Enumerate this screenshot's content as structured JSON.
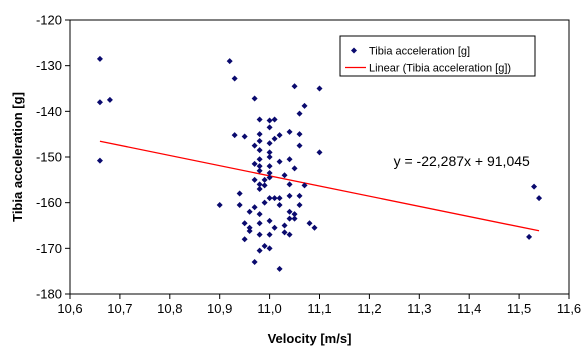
{
  "chart_data": {
    "type": "scatter",
    "title": "",
    "xlabel": "Velocity [m/s]",
    "ylabel": "Tibia acceleration [g]",
    "xlim": [
      10.6,
      11.6
    ],
    "ylim": [
      -180,
      -120
    ],
    "x_ticks": [
      "10,6",
      "10,7",
      "10,8",
      "10,9",
      "11,0",
      "11,1",
      "11,2",
      "11,3",
      "11,4",
      "11,5",
      "11,6"
    ],
    "y_ticks": [
      "-120",
      "-130",
      "-140",
      "-150",
      "-160",
      "-170",
      "-180"
    ],
    "grid": false,
    "legend_position": "top-right",
    "series": [
      {
        "name": "Tibia acceleration [g]",
        "kind": "points",
        "color": "#0a0a6e",
        "points": [
          [
            10.66,
            -128.5
          ],
          [
            10.66,
            -138.0
          ],
          [
            10.66,
            -150.8
          ],
          [
            10.68,
            -137.5
          ],
          [
            10.9,
            -160.5
          ],
          [
            10.92,
            -129.0
          ],
          [
            10.93,
            -132.8
          ],
          [
            10.93,
            -145.2
          ],
          [
            10.94,
            -158.0
          ],
          [
            10.94,
            -160.5
          ],
          [
            10.95,
            -145.5
          ],
          [
            10.95,
            -164.5
          ],
          [
            10.95,
            -168.0
          ],
          [
            10.96,
            -162.0
          ],
          [
            10.96,
            -165.5
          ],
          [
            10.96,
            -166.2
          ],
          [
            10.97,
            -137.2
          ],
          [
            10.97,
            -147.5
          ],
          [
            10.97,
            -151.5
          ],
          [
            10.97,
            -155.0
          ],
          [
            10.97,
            -161.0
          ],
          [
            10.97,
            -173.0
          ],
          [
            10.98,
            -141.8
          ],
          [
            10.98,
            -145.0
          ],
          [
            10.98,
            -146.5
          ],
          [
            10.98,
            -148.5
          ],
          [
            10.98,
            -150.5
          ],
          [
            10.98,
            -152.0
          ],
          [
            10.98,
            -153.0
          ],
          [
            10.98,
            -156.0
          ],
          [
            10.98,
            -157.0
          ],
          [
            10.98,
            -162.5
          ],
          [
            10.98,
            -164.5
          ],
          [
            10.98,
            -167.0
          ],
          [
            10.98,
            -170.5
          ],
          [
            10.99,
            -155.0
          ],
          [
            10.99,
            -156.2
          ],
          [
            10.99,
            -160.0
          ],
          [
            10.99,
            -169.5
          ],
          [
            11.0,
            -142.0
          ],
          [
            11.0,
            -143.5
          ],
          [
            11.0,
            -147.0
          ],
          [
            11.0,
            -149.0
          ],
          [
            11.0,
            -150.0
          ],
          [
            11.0,
            -152.0
          ],
          [
            11.0,
            -153.5
          ],
          [
            11.0,
            -154.5
          ],
          [
            11.0,
            -159.0
          ],
          [
            11.0,
            -164.0
          ],
          [
            11.0,
            -167.0
          ],
          [
            11.0,
            -170.0
          ],
          [
            11.01,
            -141.8
          ],
          [
            11.01,
            -146.0
          ],
          [
            11.01,
            -159.0
          ],
          [
            11.01,
            -165.5
          ],
          [
            11.02,
            -145.2
          ],
          [
            11.02,
            -151.0
          ],
          [
            11.02,
            -159.0
          ],
          [
            11.02,
            -160.5
          ],
          [
            11.02,
            -174.5
          ],
          [
            11.03,
            -154.0
          ],
          [
            11.03,
            -165.0
          ],
          [
            11.03,
            -166.5
          ],
          [
            11.04,
            -144.5
          ],
          [
            11.04,
            -150.5
          ],
          [
            11.04,
            -156.0
          ],
          [
            11.04,
            -158.5
          ],
          [
            11.04,
            -162.0
          ],
          [
            11.04,
            -163.5
          ],
          [
            11.04,
            -167.0
          ],
          [
            11.05,
            -134.5
          ],
          [
            11.05,
            -152.5
          ],
          [
            11.05,
            -162.5
          ],
          [
            11.05,
            -163.5
          ],
          [
            11.06,
            -140.5
          ],
          [
            11.06,
            -145.0
          ],
          [
            11.06,
            -147.5
          ],
          [
            11.06,
            -158.5
          ],
          [
            11.06,
            -160.5
          ],
          [
            11.07,
            -138.8
          ],
          [
            11.07,
            -156.2
          ],
          [
            11.08,
            -164.5
          ],
          [
            11.09,
            -165.5
          ],
          [
            11.1,
            -135.0
          ],
          [
            11.1,
            -149.0
          ],
          [
            11.52,
            -167.5
          ],
          [
            11.53,
            -156.5
          ],
          [
            11.54,
            -159.0
          ]
        ]
      },
      {
        "name": "Linear (Tibia acceleration [g])",
        "kind": "line",
        "color": "#ff0000",
        "line": {
          "x": [
            10.66,
            11.54
          ],
          "y": [
            -146.55,
            -166.16
          ]
        }
      }
    ],
    "annotations": [
      {
        "text": "y = -22,287x + 91,045",
        "x": 11.385,
        "y": -150.9
      }
    ]
  }
}
